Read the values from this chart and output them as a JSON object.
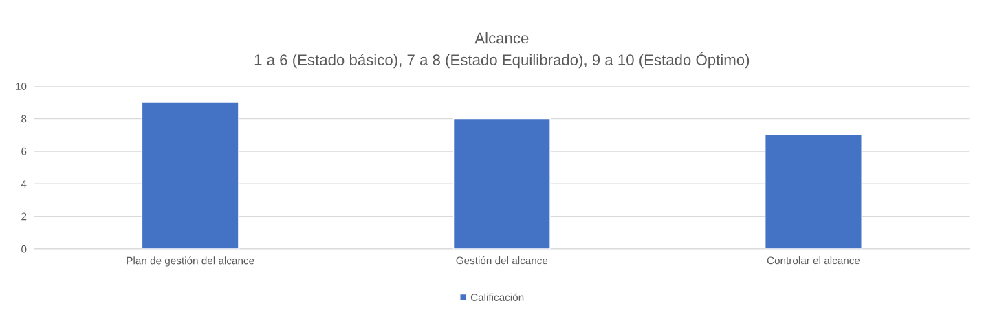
{
  "chart_data": {
    "type": "bar",
    "title": "Alcance\n1 a 6 (Estado básico), 7 a 8 (Estado Equilibrado), 9 a 10 (Estado Óptimo)",
    "categories": [
      "Plan de gestión del alcance",
      "Gestión del alcance",
      "Controlar el alcance"
    ],
    "series": [
      {
        "name": "Calificación",
        "color": "#4472c4",
        "values": [
          9,
          8,
          7
        ]
      }
    ],
    "ylim": [
      0,
      10
    ],
    "yticks": [
      0,
      2,
      4,
      6,
      8,
      10
    ],
    "grid": "y",
    "legend": "bottom"
  }
}
